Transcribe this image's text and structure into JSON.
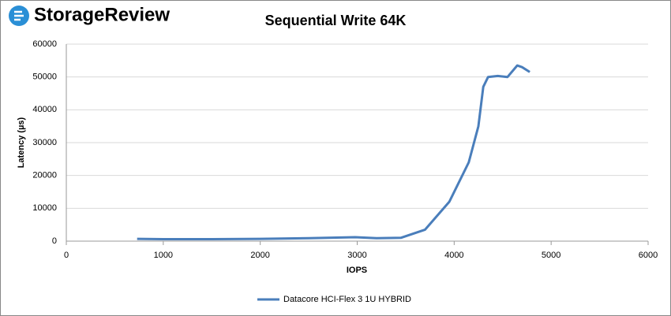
{
  "chart_data": {
    "type": "line",
    "logo": "StorageReview",
    "title": "Sequential Write 64K",
    "x_label": "IOPS",
    "y_label": "Latency (µs)",
    "xlim": [
      0,
      6000
    ],
    "xticks": [
      0,
      1000,
      2000,
      3000,
      4000,
      5000,
      6000
    ],
    "ylim": [
      0,
      60000
    ],
    "yticks": [
      0,
      10000,
      20000,
      30000,
      40000,
      50000,
      60000
    ],
    "grid": true,
    "legend": "bottom",
    "series": [
      {
        "name": "Datacore HCI-Flex 3 1U HYBRID",
        "color": "#4a7ebb",
        "x": [
          730,
          1000,
          1500,
          2000,
          2500,
          2980,
          3200,
          3450,
          3700,
          3950,
          4150,
          4250,
          4300,
          4350,
          4450,
          4550,
          4650,
          4700,
          4780
        ],
        "values": [
          700,
          600,
          600,
          700,
          900,
          1200,
          900,
          1000,
          3500,
          12000,
          24000,
          35000,
          47000,
          50000,
          50300,
          50000,
          53500,
          53000,
          51500
        ]
      }
    ]
  }
}
